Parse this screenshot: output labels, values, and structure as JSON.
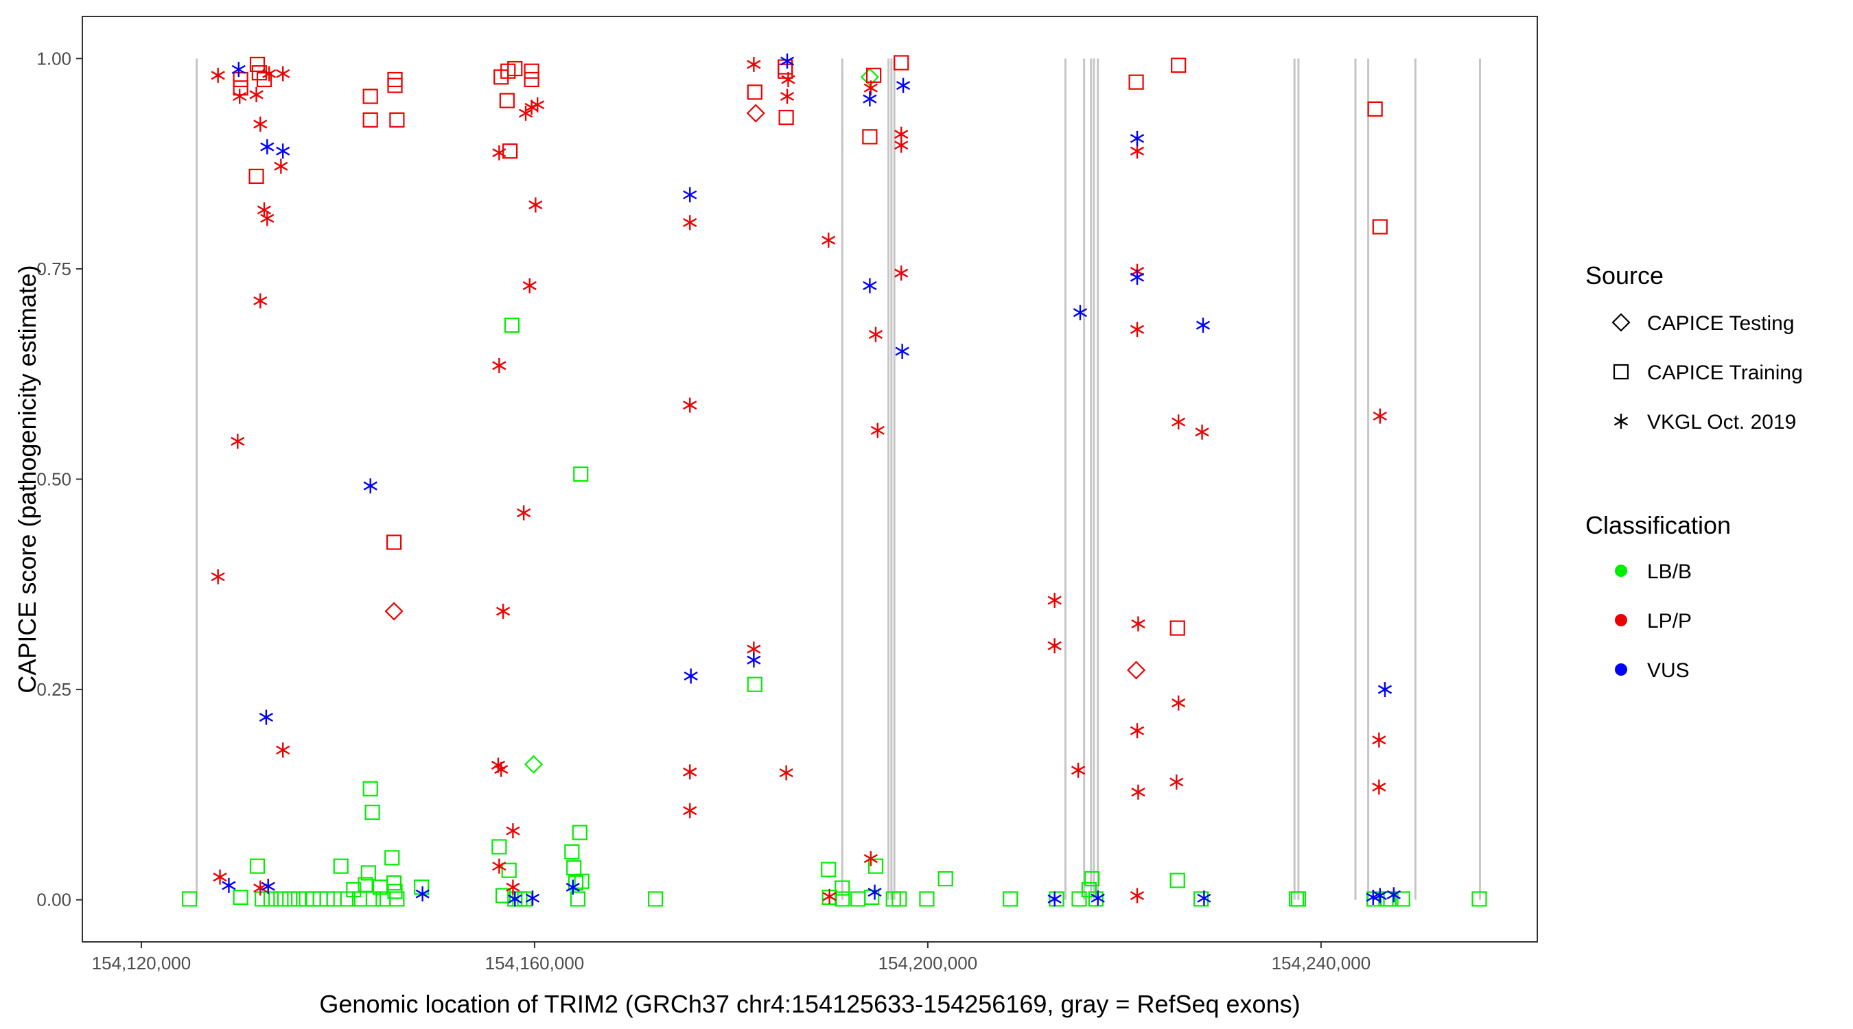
{
  "chart_data": {
    "type": "scatter",
    "xlabel": "Genomic location of TRIM2 (GRCh37 chr4:154125633-154256169, gray = RefSeq exons)",
    "ylabel": "CAPICE score (pathogenicity estimate)",
    "xlim": [
      154114000,
      154262000
    ],
    "ylim": [
      -0.05,
      1.05
    ],
    "x_ticks": [
      154120000,
      154160000,
      154200000,
      154240000
    ],
    "x_tick_labels": [
      "154,120,000",
      "154,160,000",
      "154,200,000",
      "154,240,000"
    ],
    "y_ticks": [
      0,
      0.25,
      0.5,
      0.75,
      1.0
    ],
    "y_tick_labels": [
      "0.00",
      "0.25",
      "0.50",
      "0.75",
      "1.00"
    ],
    "grid": false,
    "exons": [
      154125633,
      154191300,
      154196000,
      154196300,
      154196600,
      154214000,
      154215900,
      154216600,
      154216900,
      154217300,
      154237300,
      154237700,
      154243500,
      154244800,
      154249600,
      154256169
    ],
    "legend": {
      "placement": "right",
      "source_title": "Source",
      "source_items": [
        {
          "label": "CAPICE Testing",
          "shape": "diamond"
        },
        {
          "label": "CAPICE Training",
          "shape": "square"
        },
        {
          "label": "VKGL Oct. 2019",
          "shape": "asterisk"
        }
      ],
      "class_title": "Classification",
      "class_items": [
        {
          "label": "LB/B",
          "color": "#00ee00"
        },
        {
          "label": "LP/P",
          "color": "#ee0000"
        },
        {
          "label": "VUS",
          "color": "#0000ff"
        }
      ]
    },
    "series": [
      {
        "name": "CAPICE Testing",
        "shape": "diamond",
        "points": [
          [
            154145700,
            0.343,
            "LP/P"
          ],
          [
            154159900,
            0.161,
            "LB/B"
          ],
          [
            154182500,
            0.935,
            "LP/P"
          ],
          [
            154194100,
            0.978,
            "LB/B"
          ],
          [
            154221200,
            0.273,
            "LP/P"
          ]
        ]
      },
      {
        "name": "CAPICE Training",
        "shape": "square",
        "points": [
          [
            154130100,
            0.975,
            "LP/P"
          ],
          [
            154130100,
            0.965,
            "LP/P"
          ],
          [
            154131800,
            0.993,
            "LP/P"
          ],
          [
            154132000,
            0.983,
            "LP/P"
          ],
          [
            154132500,
            0.975,
            "LP/P"
          ],
          [
            154131700,
            0.86,
            "LP/P"
          ],
          [
            154143300,
            0.955,
            "LP/P"
          ],
          [
            154143300,
            0.927,
            "LP/P"
          ],
          [
            154145800,
            0.975,
            "LP/P"
          ],
          [
            154145800,
            0.968,
            "LP/P"
          ],
          [
            154146000,
            0.927,
            "LP/P"
          ],
          [
            154145700,
            0.425,
            "LP/P"
          ],
          [
            154156600,
            0.978,
            "LP/P"
          ],
          [
            154157300,
            0.985,
            "LP/P"
          ],
          [
            154158000,
            0.988,
            "LP/P"
          ],
          [
            154159700,
            0.985,
            "LP/P"
          ],
          [
            154159700,
            0.975,
            "LP/P"
          ],
          [
            154157200,
            0.95,
            "LP/P"
          ],
          [
            154157500,
            0.89,
            "LP/P"
          ],
          [
            154182400,
            0.96,
            "LP/P"
          ],
          [
            154185500,
            0.99,
            "LP/P"
          ],
          [
            154185500,
            0.985,
            "LP/P"
          ],
          [
            154185600,
            0.93,
            "LP/P"
          ],
          [
            154194500,
            0.98,
            "LP/P"
          ],
          [
            154194100,
            0.907,
            "LP/P"
          ],
          [
            154197300,
            0.995,
            "LP/P"
          ],
          [
            154221200,
            0.972,
            "LP/P"
          ],
          [
            154225500,
            0.992,
            "LP/P"
          ],
          [
            154225400,
            0.323,
            "LP/P"
          ],
          [
            154245500,
            0.94,
            "LP/P"
          ],
          [
            154246000,
            0.8,
            "LP/P"
          ],
          [
            154124900,
            0.001,
            "LB/B"
          ],
          [
            154130100,
            0.003,
            "LB/B"
          ],
          [
            154131800,
            0.04,
            "LB/B"
          ],
          [
            154132300,
            0.001,
            "LB/B"
          ],
          [
            154133200,
            0.001,
            "LB/B"
          ],
          [
            154134200,
            0.001,
            "LB/B"
          ],
          [
            154135100,
            0.001,
            "LB/B"
          ],
          [
            154136000,
            0.001,
            "LB/B"
          ],
          [
            154136800,
            0.001,
            "LB/B"
          ],
          [
            154137500,
            0.001,
            "LB/B"
          ],
          [
            154138200,
            0.001,
            "LB/B"
          ],
          [
            154138900,
            0.001,
            "LB/B"
          ],
          [
            154139600,
            0.001,
            "LB/B"
          ],
          [
            154140300,
            0.04,
            "LB/B"
          ],
          [
            154141000,
            0.001,
            "LB/B"
          ],
          [
            154141600,
            0.012,
            "LB/B"
          ],
          [
            154142200,
            0.001,
            "LB/B"
          ],
          [
            154142800,
            0.018,
            "LB/B"
          ],
          [
            154143100,
            0.032,
            "LB/B"
          ],
          [
            154143300,
            0.132,
            "LB/B"
          ],
          [
            154143500,
            0.104,
            "LB/B"
          ],
          [
            154143600,
            0.001,
            "LB/B"
          ],
          [
            154144300,
            0.015,
            "LB/B"
          ],
          [
            154144600,
            0.001,
            "LB/B"
          ],
          [
            154145500,
            0.05,
            "LB/B"
          ],
          [
            154145700,
            0.02,
            "LB/B"
          ],
          [
            154145800,
            0.01,
            "LB/B"
          ],
          [
            154146000,
            0.001,
            "LB/B"
          ],
          [
            154148500,
            0.015,
            "LB/B"
          ],
          [
            154156400,
            0.063,
            "LB/B"
          ],
          [
            154156800,
            0.005,
            "LB/B"
          ],
          [
            154157400,
            0.035,
            "LB/B"
          ],
          [
            154157700,
            0.683,
            "LB/B"
          ],
          [
            154158000,
            0.001,
            "LB/B"
          ],
          [
            154158500,
            0.001,
            "LB/B"
          ],
          [
            154159000,
            0.001,
            "LB/B"
          ],
          [
            154163800,
            0.057,
            "LB/B"
          ],
          [
            154164000,
            0.038,
            "LB/B"
          ],
          [
            154164200,
            0.02,
            "LB/B"
          ],
          [
            154164400,
            0.001,
            "LB/B"
          ],
          [
            154164600,
            0.08,
            "LB/B"
          ],
          [
            154164700,
            0.506,
            "LB/B"
          ],
          [
            154164800,
            0.022,
            "LB/B"
          ],
          [
            154172300,
            0.001,
            "LB/B"
          ],
          [
            154182400,
            0.256,
            "LB/B"
          ],
          [
            154189900,
            0.036,
            "LB/B"
          ],
          [
            154190000,
            0.003,
            "LB/B"
          ],
          [
            154191300,
            0.014,
            "LB/B"
          ],
          [
            154191300,
            0.001,
            "LB/B"
          ],
          [
            154192900,
            0.001,
            "LB/B"
          ],
          [
            154194300,
            0.003,
            "LB/B"
          ],
          [
            154194700,
            0.04,
            "LB/B"
          ],
          [
            154196500,
            0.001,
            "LB/B"
          ],
          [
            154197100,
            0.001,
            "LB/B"
          ],
          [
            154199900,
            0.001,
            "LB/B"
          ],
          [
            154201800,
            0.025,
            "LB/B"
          ],
          [
            154208400,
            0.001,
            "LB/B"
          ],
          [
            154213100,
            0.001,
            "LB/B"
          ],
          [
            154215400,
            0.001,
            "LB/B"
          ],
          [
            154216400,
            0.012,
            "LB/B"
          ],
          [
            154216700,
            0.025,
            "LB/B"
          ],
          [
            154217100,
            0.001,
            "LB/B"
          ],
          [
            154225400,
            0.023,
            "LB/B"
          ],
          [
            154227800,
            0.001,
            "LB/B"
          ],
          [
            154237500,
            0.001,
            "LB/B"
          ],
          [
            154237700,
            0.001,
            "LB/B"
          ],
          [
            154245400,
            0.001,
            "LB/B"
          ],
          [
            154246600,
            0.001,
            "LB/B"
          ],
          [
            154247100,
            0.001,
            "LB/B"
          ],
          [
            154248300,
            0.001,
            "LB/B"
          ],
          [
            154256100,
            0.001,
            "LB/B"
          ]
        ]
      },
      {
        "name": "VKGL Oct. 2019",
        "shape": "asterisk",
        "points": [
          [
            154127800,
            0.98,
            "LP/P"
          ],
          [
            154130000,
            0.955,
            "LP/P"
          ],
          [
            154131700,
            0.957,
            "LP/P"
          ],
          [
            154132100,
            0.922,
            "LP/P"
          ],
          [
            154133000,
            0.982,
            "LP/P"
          ],
          [
            154134400,
            0.982,
            "LP/P"
          ],
          [
            154134200,
            0.872,
            "LP/P"
          ],
          [
            154132500,
            0.82,
            "LP/P"
          ],
          [
            154132800,
            0.81,
            "LP/P"
          ],
          [
            154132100,
            0.712,
            "LP/P"
          ],
          [
            154129800,
            0.545,
            "LP/P"
          ],
          [
            154127800,
            0.384,
            "LP/P"
          ],
          [
            154134400,
            0.178,
            "LP/P"
          ],
          [
            154128000,
            0.027,
            "LP/P"
          ],
          [
            154132100,
            0.014,
            "LP/P"
          ],
          [
            154156400,
            0.888,
            "LP/P"
          ],
          [
            154159100,
            0.935,
            "LP/P"
          ],
          [
            154159700,
            0.942,
            "LP/P"
          ],
          [
            154160300,
            0.945,
            "LP/P"
          ],
          [
            154160100,
            0.826,
            "LP/P"
          ],
          [
            154159500,
            0.73,
            "LP/P"
          ],
          [
            154156400,
            0.635,
            "LP/P"
          ],
          [
            154158900,
            0.46,
            "LP/P"
          ],
          [
            154156800,
            0.343,
            "LP/P"
          ],
          [
            154156300,
            0.16,
            "LP/P"
          ],
          [
            154156600,
            0.155,
            "LP/P"
          ],
          [
            154157800,
            0.082,
            "LP/P"
          ],
          [
            154156400,
            0.04,
            "LP/P"
          ],
          [
            154157800,
            0.015,
            "LP/P"
          ],
          [
            154175800,
            0.805,
            "LP/P"
          ],
          [
            154175800,
            0.588,
            "LP/P"
          ],
          [
            154175800,
            0.152,
            "LP/P"
          ],
          [
            154175800,
            0.106,
            "LP/P"
          ],
          [
            154182300,
            0.993,
            "LP/P"
          ],
          [
            154185700,
            0.955,
            "LP/P"
          ],
          [
            154185800,
            0.975,
            "LP/P"
          ],
          [
            154182300,
            0.298,
            "LP/P"
          ],
          [
            154185600,
            0.151,
            "LP/P"
          ],
          [
            154189900,
            0.784,
            "LP/P"
          ],
          [
            154190000,
            0.004,
            "LP/P"
          ],
          [
            154194200,
            0.965,
            "LP/P"
          ],
          [
            154194700,
            0.672,
            "LP/P"
          ],
          [
            154194900,
            0.558,
            "LP/P"
          ],
          [
            154194200,
            0.049,
            "LP/P"
          ],
          [
            154197300,
            0.91,
            "LP/P"
          ],
          [
            154197300,
            0.897,
            "LP/P"
          ],
          [
            154197300,
            0.745,
            "LP/P"
          ],
          [
            154212900,
            0.356,
            "LP/P"
          ],
          [
            154212900,
            0.302,
            "LP/P"
          ],
          [
            154215300,
            0.154,
            "LP/P"
          ],
          [
            154221300,
            0.89,
            "LP/P"
          ],
          [
            154221300,
            0.747,
            "LP/P"
          ],
          [
            154221300,
            0.678,
            "LP/P"
          ],
          [
            154221400,
            0.328,
            "LP/P"
          ],
          [
            154221300,
            0.201,
            "LP/P"
          ],
          [
            154221400,
            0.128,
            "LP/P"
          ],
          [
            154221300,
            0.005,
            "LP/P"
          ],
          [
            154225500,
            0.568,
            "LP/P"
          ],
          [
            154225500,
            0.234,
            "LP/P"
          ],
          [
            154225300,
            0.14,
            "LP/P"
          ],
          [
            154227900,
            0.556,
            "LP/P"
          ],
          [
            154246000,
            0.575,
            "LP/P"
          ],
          [
            154245900,
            0.19,
            "LP/P"
          ],
          [
            154245900,
            0.134,
            "LP/P"
          ],
          [
            154129900,
            0.987,
            "VUS"
          ],
          [
            154132800,
            0.895,
            "VUS"
          ],
          [
            154134400,
            0.89,
            "VUS"
          ],
          [
            154132700,
            0.217,
            "VUS"
          ],
          [
            154128900,
            0.017,
            "VUS"
          ],
          [
            154132900,
            0.016,
            "VUS"
          ],
          [
            154143300,
            0.492,
            "VUS"
          ],
          [
            154148600,
            0.007,
            "VUS"
          ],
          [
            154158000,
            0.001,
            "VUS"
          ],
          [
            154159800,
            0.002,
            "VUS"
          ],
          [
            154163900,
            0.015,
            "VUS"
          ],
          [
            154175800,
            0.838,
            "VUS"
          ],
          [
            154175900,
            0.266,
            "VUS"
          ],
          [
            154182300,
            0.285,
            "VUS"
          ],
          [
            154185700,
            0.997,
            "VUS"
          ],
          [
            154194100,
            0.952,
            "VUS"
          ],
          [
            154194100,
            0.73,
            "VUS"
          ],
          [
            154194600,
            0.009,
            "VUS"
          ],
          [
            154197500,
            0.968,
            "VUS"
          ],
          [
            154197400,
            0.652,
            "VUS"
          ],
          [
            154212900,
            0.001,
            "VUS"
          ],
          [
            154215500,
            0.698,
            "VUS"
          ],
          [
            154217300,
            0.002,
            "VUS"
          ],
          [
            154221300,
            0.905,
            "VUS"
          ],
          [
            154221300,
            0.74,
            "VUS"
          ],
          [
            154228000,
            0.683,
            "VUS"
          ],
          [
            154228100,
            0.002,
            "VUS"
          ],
          [
            154245300,
            0.003,
            "VUS"
          ],
          [
            154246000,
            0.005,
            "VUS"
          ],
          [
            154246500,
            0.25,
            "VUS"
          ],
          [
            154247400,
            0.006,
            "VUS"
          ]
        ]
      }
    ]
  }
}
